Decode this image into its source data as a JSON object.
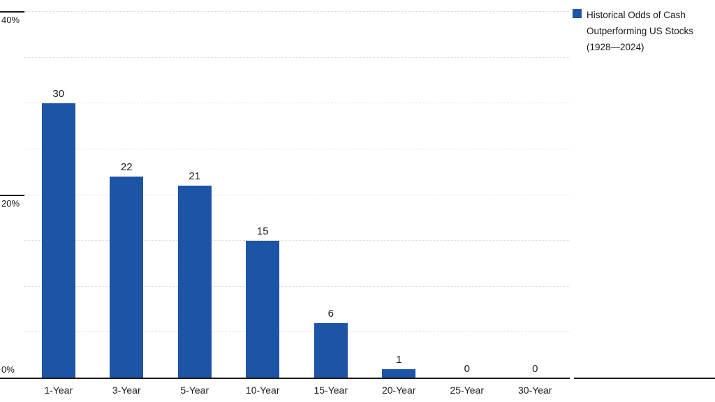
{
  "chart_data": {
    "type": "bar",
    "categories": [
      "1-Year",
      "3-Year",
      "5-Year",
      "10-Year",
      "15-Year",
      "20-Year",
      "25-Year",
      "30-Year"
    ],
    "values": [
      30,
      22,
      21,
      15,
      6,
      1,
      0,
      0
    ],
    "title": "",
    "xlabel": "",
    "ylabel": "",
    "ylim": [
      0,
      40
    ],
    "yticks": [
      0,
      20,
      40
    ],
    "ytick_labels": [
      "0%",
      "20%",
      "40%"
    ],
    "gridline_step": 5,
    "grid": true,
    "bar_color": "#1c54a6",
    "legend_position": "top-right",
    "legend": [
      "Historical Odds of Cash",
      "Outperforming US Stocks",
      "(1928—2024)"
    ]
  },
  "legend": {
    "line1": "Historical Odds of Cash",
    "line2": "Outperforming US Stocks",
    "line3": "(1928—2024)"
  }
}
